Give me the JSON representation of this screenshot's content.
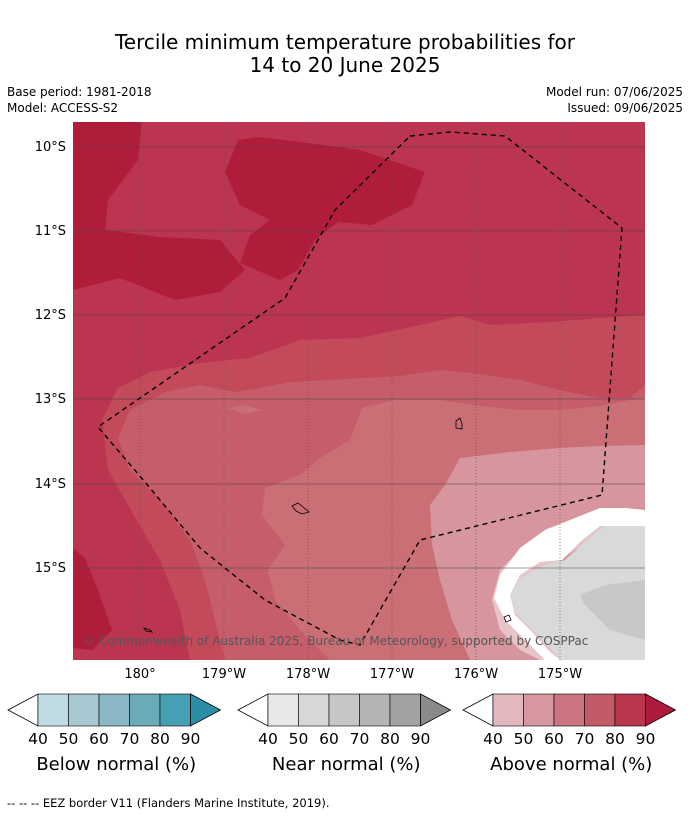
{
  "title_line1": "Tercile minimum temperature probabilities for",
  "title_line2": "14 to 20 June 2025",
  "base_period": "Base period: 1981-2018",
  "model": "Model: ACCESS-S2",
  "model_run": "Model run: 07/06/2025",
  "issued": "Issued: 09/06/2025",
  "lat_labels": [
    "10°S",
    "11°S",
    "12°S",
    "13°S",
    "14°S",
    "15°S"
  ],
  "lon_labels": [
    "180°",
    "179°W",
    "178°W",
    "177°W",
    "176°W",
    "175°W"
  ],
  "copyright": "© Commonwealth of Australia 2025, Bureau of Meteorology, supported by COSPPac",
  "colorbars": [
    {
      "title": "Below normal (%)",
      "ticks": [
        "40",
        "50",
        "60",
        "70",
        "80",
        "90"
      ],
      "colors": [
        "#c0dbe3",
        "#a8c9d1",
        "#8ab8c5",
        "#6aaab9",
        "#46a0b3",
        "#2a8fa6"
      ]
    },
    {
      "title": "Near normal (%)",
      "ticks": [
        "40",
        "50",
        "60",
        "70",
        "80",
        "90"
      ],
      "colors": [
        "#e8e8e8",
        "#d8d8d8",
        "#c6c6c6",
        "#b4b4b4",
        "#a2a2a2",
        "#8a8a8a"
      ]
    },
    {
      "title": "Above normal (%)",
      "ticks": [
        "40",
        "50",
        "60",
        "70",
        "80",
        "90"
      ],
      "colors": [
        "#e2b8be",
        "#d7979e",
        "#cc747f",
        "#c35a67",
        "#ba364f",
        "#ae1a3c"
      ]
    }
  ],
  "footnote": "--  --  -- EEZ border V11 (Flanders Marine Institute, 2019)."
}
